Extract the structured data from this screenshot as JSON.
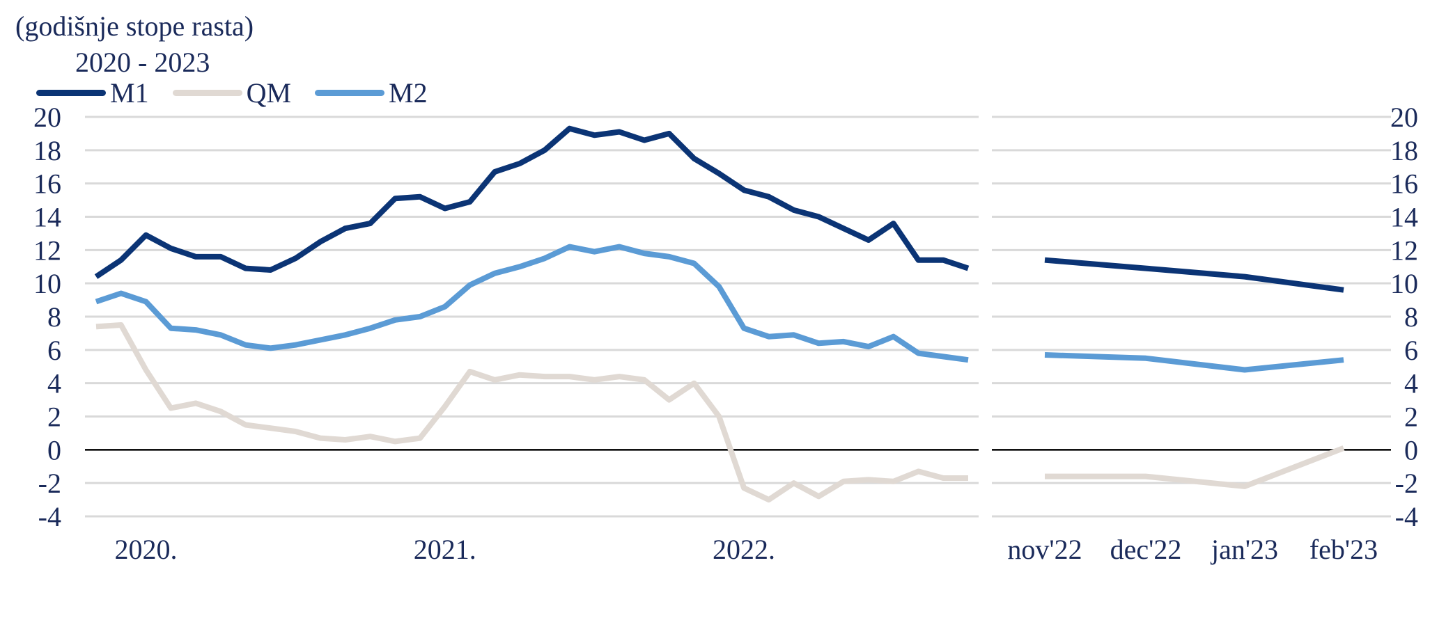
{
  "subtitle": "(godišnje stope rasta)",
  "period_label": "2020 - 2023",
  "colors": {
    "M1": "#0b3475",
    "QM": "#e0d9d3",
    "M2": "#5b9bd5",
    "grid": "#d9d9d9",
    "zero": "#000000",
    "text": "#1a2a5a"
  },
  "legend": [
    {
      "key": "M1",
      "label": "M1"
    },
    {
      "key": "QM",
      "label": "QM"
    },
    {
      "key": "M2",
      "label": "M2"
    }
  ],
  "chart_data": [
    {
      "type": "line",
      "title": "",
      "ylim": [
        -4,
        20
      ],
      "yticks": [
        -4,
        -2,
        0,
        2,
        4,
        6,
        8,
        10,
        12,
        14,
        16,
        18,
        20
      ],
      "grid": true,
      "x_tick_labels": [
        "2020.",
        "2021.",
        "2022."
      ],
      "x_label_month_index": [
        2,
        14,
        26
      ],
      "series": [
        {
          "name": "M1",
          "values": [
            10.4,
            11.4,
            12.9,
            12.1,
            11.6,
            11.6,
            10.9,
            10.8,
            11.5,
            12.5,
            13.3,
            13.6,
            15.1,
            15.2,
            14.5,
            14.9,
            16.7,
            17.2,
            18.0,
            19.3,
            18.9,
            19.1,
            18.6,
            19.0,
            17.5,
            16.6,
            15.6,
            15.2,
            14.4,
            14.0,
            13.3,
            12.6,
            13.6,
            11.4,
            11.4,
            10.9
          ]
        },
        {
          "name": "QM",
          "values": [
            7.4,
            7.5,
            4.8,
            2.5,
            2.8,
            2.3,
            1.5,
            1.3,
            1.1,
            0.7,
            0.6,
            0.8,
            0.5,
            0.7,
            2.6,
            4.7,
            4.2,
            4.5,
            4.4,
            4.4,
            4.2,
            4.4,
            4.2,
            3.0,
            4.0,
            2.0,
            -2.3,
            -3.0,
            -2.0,
            -2.8,
            -1.9,
            -1.8,
            -1.9,
            -1.3,
            -1.7,
            -1.7
          ]
        },
        {
          "name": "M2",
          "values": [
            8.9,
            9.4,
            8.9,
            7.3,
            7.2,
            6.9,
            6.3,
            6.1,
            6.3,
            6.6,
            6.9,
            7.3,
            7.8,
            8.0,
            8.6,
            9.9,
            10.6,
            11.0,
            11.5,
            12.2,
            11.9,
            12.2,
            11.8,
            11.6,
            11.2,
            9.8,
            7.3,
            6.8,
            6.9,
            6.4,
            6.5,
            6.2,
            6.8,
            5.8,
            5.6,
            5.4
          ]
        }
      ]
    },
    {
      "type": "line",
      "title": "",
      "categories": [
        "nov'22",
        "dec'22",
        "jan'23",
        "feb'23"
      ],
      "ylim": [
        -4,
        20
      ],
      "yticks": [
        -4,
        -2,
        0,
        2,
        4,
        6,
        8,
        10,
        12,
        14,
        16,
        18,
        20
      ],
      "grid": true,
      "series": [
        {
          "name": "M1",
          "values": [
            11.4,
            10.9,
            10.4,
            9.6
          ]
        },
        {
          "name": "QM",
          "values": [
            -1.6,
            -1.6,
            -2.2,
            0.1
          ]
        },
        {
          "name": "M2",
          "values": [
            5.7,
            5.5,
            4.8,
            5.4
          ]
        }
      ]
    }
  ]
}
